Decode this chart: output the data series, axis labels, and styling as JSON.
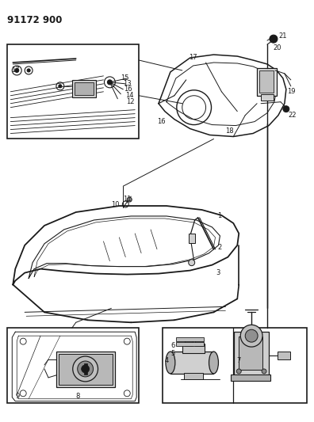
{
  "title": "91172 900",
  "bg_color": "#ffffff",
  "line_color": "#1a1a1a",
  "fig_width": 3.96,
  "fig_height": 5.33,
  "dpi": 100,
  "title_fontsize": 8.5,
  "label_fontsize": 6.0
}
